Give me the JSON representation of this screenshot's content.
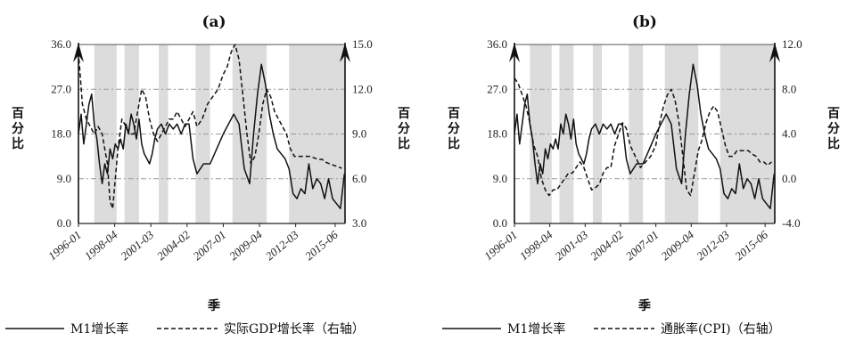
{
  "chart_data": [
    {
      "type": "line",
      "title": "(a)",
      "xlabel": "季",
      "ylabel": "百分比",
      "y2label": "百分比",
      "x_ticks": [
        "1996-01",
        "1998-04",
        "2001-03",
        "2004-02",
        "2007-01",
        "2009-04",
        "2012-03",
        "2015-06"
      ],
      "ylim": [
        0,
        36
      ],
      "yticks": [
        "0.0",
        "9.0",
        "18.0",
        "27.0",
        "36.0"
      ],
      "y2lim": [
        3,
        15
      ],
      "y2ticks": [
        "3.0",
        "6.0",
        "9.0",
        "12.0",
        "15.0"
      ],
      "recession_bands": [
        [
          1997.2,
          1998.9
        ],
        [
          1999.5,
          2000.6
        ],
        [
          2002.1,
          2002.8
        ],
        [
          2004.9,
          2006.0
        ],
        [
          2007.7,
          2010.3
        ]
      ],
      "legend": {
        "position": "bottom"
      },
      "series": [
        {
          "name": "M1增长率",
          "axis": "left",
          "style": "solid",
          "x": [
            1996.0,
            1996.2,
            1996.4,
            1996.6,
            1996.8,
            1997.0,
            1997.2,
            1997.4,
            1997.6,
            1997.8,
            1998.0,
            1998.2,
            1998.4,
            1998.6,
            1998.8,
            1999.0,
            1999.2,
            1999.4,
            1999.6,
            1999.8,
            2000.0,
            2000.2,
            2000.4,
            2000.6,
            2000.8,
            2001.0,
            2001.2,
            2001.4,
            2001.6,
            2001.8,
            2002.0,
            2002.3,
            2002.6,
            2002.9,
            2003.2,
            2003.5,
            2003.8,
            2004.1,
            2004.4,
            2004.7,
            2005.0,
            2005.5,
            2006.0,
            2006.5,
            2007.0,
            2007.4,
            2007.8,
            2008.2,
            2008.6,
            2009.0,
            2009.3,
            2009.6,
            2009.9,
            2010.2,
            2010.5,
            2010.8,
            2011.1,
            2011.4,
            2011.7,
            2012.0,
            2012.3,
            2012.6,
            2012.9,
            2013.2,
            2013.5,
            2013.8,
            2014.1,
            2014.4,
            2014.7,
            2015.0,
            2015.3,
            2015.6,
            2015.9,
            2016.2
          ],
          "values": [
            18,
            22,
            16,
            20,
            24,
            26,
            20,
            17,
            12,
            8,
            12,
            10,
            15,
            13,
            16,
            15,
            17,
            15,
            20,
            18,
            22,
            20,
            17,
            21,
            16,
            14,
            13,
            12,
            14,
            17,
            19,
            20,
            18,
            20,
            19,
            20,
            18,
            20,
            20,
            13,
            10,
            12,
            12,
            15,
            18,
            20,
            22,
            20,
            11,
            8,
            18,
            26,
            32,
            28,
            22,
            18,
            15,
            14,
            13,
            11,
            6,
            5,
            7,
            6,
            12,
            7,
            9,
            8,
            5,
            9,
            5,
            4,
            3,
            10
          ]
        },
        {
          "name": "实际GDP增长率（右轴）",
          "axis": "right",
          "style": "dashed",
          "x": [
            1996.0,
            1996.3,
            1996.6,
            1996.9,
            1997.2,
            1997.5,
            1997.8,
            1998.0,
            1998.2,
            1998.4,
            1998.6,
            1998.8,
            1999.0,
            1999.3,
            1999.6,
            1999.9,
            2000.2,
            2000.5,
            2000.8,
            2001.1,
            2001.4,
            2001.7,
            2002.0,
            2002.3,
            2002.6,
            2002.9,
            2003.2,
            2003.5,
            2003.8,
            2004.1,
            2004.4,
            2004.7,
            2005.0,
            2005.4,
            2005.8,
            2006.2,
            2006.6,
            2007.0,
            2007.3,
            2007.6,
            2007.9,
            2008.2,
            2008.5,
            2008.8,
            2009.1,
            2009.4,
            2009.7,
            2010.0,
            2010.3,
            2010.6,
            2010.9,
            2011.2,
            2011.5,
            2011.8,
            2012.1,
            2012.4,
            2012.7,
            2013.0,
            2013.3,
            2013.6,
            2013.9,
            2014.2,
            2014.5,
            2014.8,
            2015.1,
            2015.4,
            2015.7,
            2016.0
          ],
          "values": [
            14.5,
            11.0,
            10.0,
            9.5,
            9.0,
            9.5,
            9.0,
            8.0,
            7.0,
            4.5,
            4.0,
            6.0,
            8.0,
            10.0,
            9.5,
            9.0,
            9.0,
            10.5,
            12.0,
            11.5,
            10.0,
            9.0,
            8.5,
            9.0,
            9.5,
            10.0,
            10.0,
            10.5,
            10.0,
            9.5,
            10.0,
            10.5,
            9.5,
            10.0,
            11.0,
            11.5,
            12.0,
            13.0,
            13.5,
            14.5,
            15.0,
            14.0,
            11.5,
            9.0,
            7.0,
            7.5,
            9.0,
            11.0,
            12.0,
            11.5,
            10.5,
            10.0,
            9.5,
            9.0,
            8.0,
            7.5,
            7.5,
            7.5,
            7.5,
            7.5,
            7.4,
            7.3,
            7.3,
            7.1,
            7.0,
            6.9,
            6.8,
            6.7
          ]
        }
      ]
    },
    {
      "type": "line",
      "title": "(b)",
      "xlabel": "季",
      "ylabel": "百分比",
      "y2label": "百分比",
      "x_ticks": [
        "1996-01",
        "1998-04",
        "2001-03",
        "2004-02",
        "2007-01",
        "2009-04",
        "2012-03",
        "2015-06"
      ],
      "ylim": [
        0,
        36
      ],
      "yticks": [
        "0.0",
        "9.0",
        "18.0",
        "27.0",
        "36.0"
      ],
      "y2lim": [
        -4,
        12
      ],
      "y2ticks": [
        "-4.0",
        "0.0",
        "4.0",
        "8.0",
        "12.0"
      ],
      "recession_bands": [
        [
          1997.2,
          1998.9
        ],
        [
          1999.5,
          2000.6
        ],
        [
          2002.1,
          2002.8
        ],
        [
          2004.9,
          2006.0
        ],
        [
          2007.7,
          2010.3
        ]
      ],
      "legend": {
        "position": "bottom"
      },
      "series": [
        {
          "name": "M1增长率",
          "axis": "left",
          "style": "solid",
          "x": [
            1996.0,
            1996.2,
            1996.4,
            1996.6,
            1996.8,
            1997.0,
            1997.2,
            1997.4,
            1997.6,
            1997.8,
            1998.0,
            1998.2,
            1998.4,
            1998.6,
            1998.8,
            1999.0,
            1999.2,
            1999.4,
            1999.6,
            1999.8,
            2000.0,
            2000.2,
            2000.4,
            2000.6,
            2000.8,
            2001.0,
            2001.2,
            2001.4,
            2001.6,
            2001.8,
            2002.0,
            2002.3,
            2002.6,
            2002.9,
            2003.2,
            2003.5,
            2003.8,
            2004.1,
            2004.4,
            2004.7,
            2005.0,
            2005.5,
            2006.0,
            2006.5,
            2007.0,
            2007.4,
            2007.8,
            2008.2,
            2008.6,
            2009.0,
            2009.3,
            2009.6,
            2009.9,
            2010.2,
            2010.5,
            2010.8,
            2011.1,
            2011.4,
            2011.7,
            2012.0,
            2012.3,
            2012.6,
            2012.9,
            2013.2,
            2013.5,
            2013.8,
            2014.1,
            2014.4,
            2014.7,
            2015.0,
            2015.3,
            2015.6,
            2015.9,
            2016.2
          ],
          "values": [
            18,
            22,
            16,
            20,
            24,
            26,
            20,
            17,
            12,
            8,
            12,
            10,
            15,
            13,
            16,
            15,
            17,
            15,
            20,
            18,
            22,
            20,
            17,
            21,
            16,
            14,
            13,
            12,
            14,
            17,
            19,
            20,
            18,
            20,
            19,
            20,
            18,
            20,
            20,
            13,
            10,
            12,
            12,
            15,
            18,
            20,
            22,
            20,
            11,
            8,
            18,
            26,
            32,
            28,
            22,
            18,
            15,
            14,
            13,
            11,
            6,
            5,
            7,
            6,
            12,
            7,
            9,
            8,
            5,
            9,
            5,
            4,
            3,
            10
          ]
        },
        {
          "name": "通胀率(CPI)（右轴）",
          "axis": "right",
          "style": "dashed",
          "x": [
            1996.0,
            1996.3,
            1996.6,
            1996.9,
            1997.2,
            1997.5,
            1997.8,
            1998.1,
            1998.4,
            1998.7,
            1999.0,
            1999.3,
            1999.6,
            1999.9,
            2000.2,
            2000.5,
            2000.8,
            2001.1,
            2001.4,
            2001.7,
            2002.0,
            2002.3,
            2002.6,
            2002.9,
            2003.2,
            2003.5,
            2003.8,
            2004.1,
            2004.4,
            2004.7,
            2005.0,
            2005.4,
            2005.8,
            2006.2,
            2006.6,
            2007.0,
            2007.3,
            2007.6,
            2007.9,
            2008.2,
            2008.5,
            2008.8,
            2009.1,
            2009.4,
            2009.7,
            2010.0,
            2010.3,
            2010.6,
            2010.9,
            2011.2,
            2011.5,
            2011.8,
            2012.1,
            2012.4,
            2012.7,
            2013.0,
            2013.3,
            2013.6,
            2013.9,
            2014.2,
            2014.5,
            2014.8,
            2015.1,
            2015.4,
            2015.7,
            2016.0
          ],
          "values": [
            9.0,
            8.5,
            7.5,
            6.5,
            5.0,
            3.0,
            2.0,
            0.0,
            -1.0,
            -1.5,
            -1.0,
            -1.0,
            -0.5,
            0.0,
            0.5,
            0.5,
            1.0,
            1.5,
            1.0,
            0.0,
            -1.0,
            -0.8,
            -0.5,
            0.5,
            1.0,
            1.0,
            3.0,
            4.0,
            5.0,
            4.5,
            3.0,
            2.0,
            1.0,
            1.5,
            2.0,
            3.0,
            5.0,
            6.5,
            7.5,
            8.0,
            7.0,
            5.0,
            2.0,
            -1.0,
            -1.5,
            0.5,
            2.5,
            3.5,
            5.0,
            6.0,
            6.5,
            6.0,
            4.5,
            3.0,
            2.0,
            2.0,
            2.5,
            2.5,
            2.5,
            2.5,
            2.2,
            2.0,
            1.5,
            1.5,
            1.2,
            1.5
          ]
        }
      ]
    }
  ]
}
